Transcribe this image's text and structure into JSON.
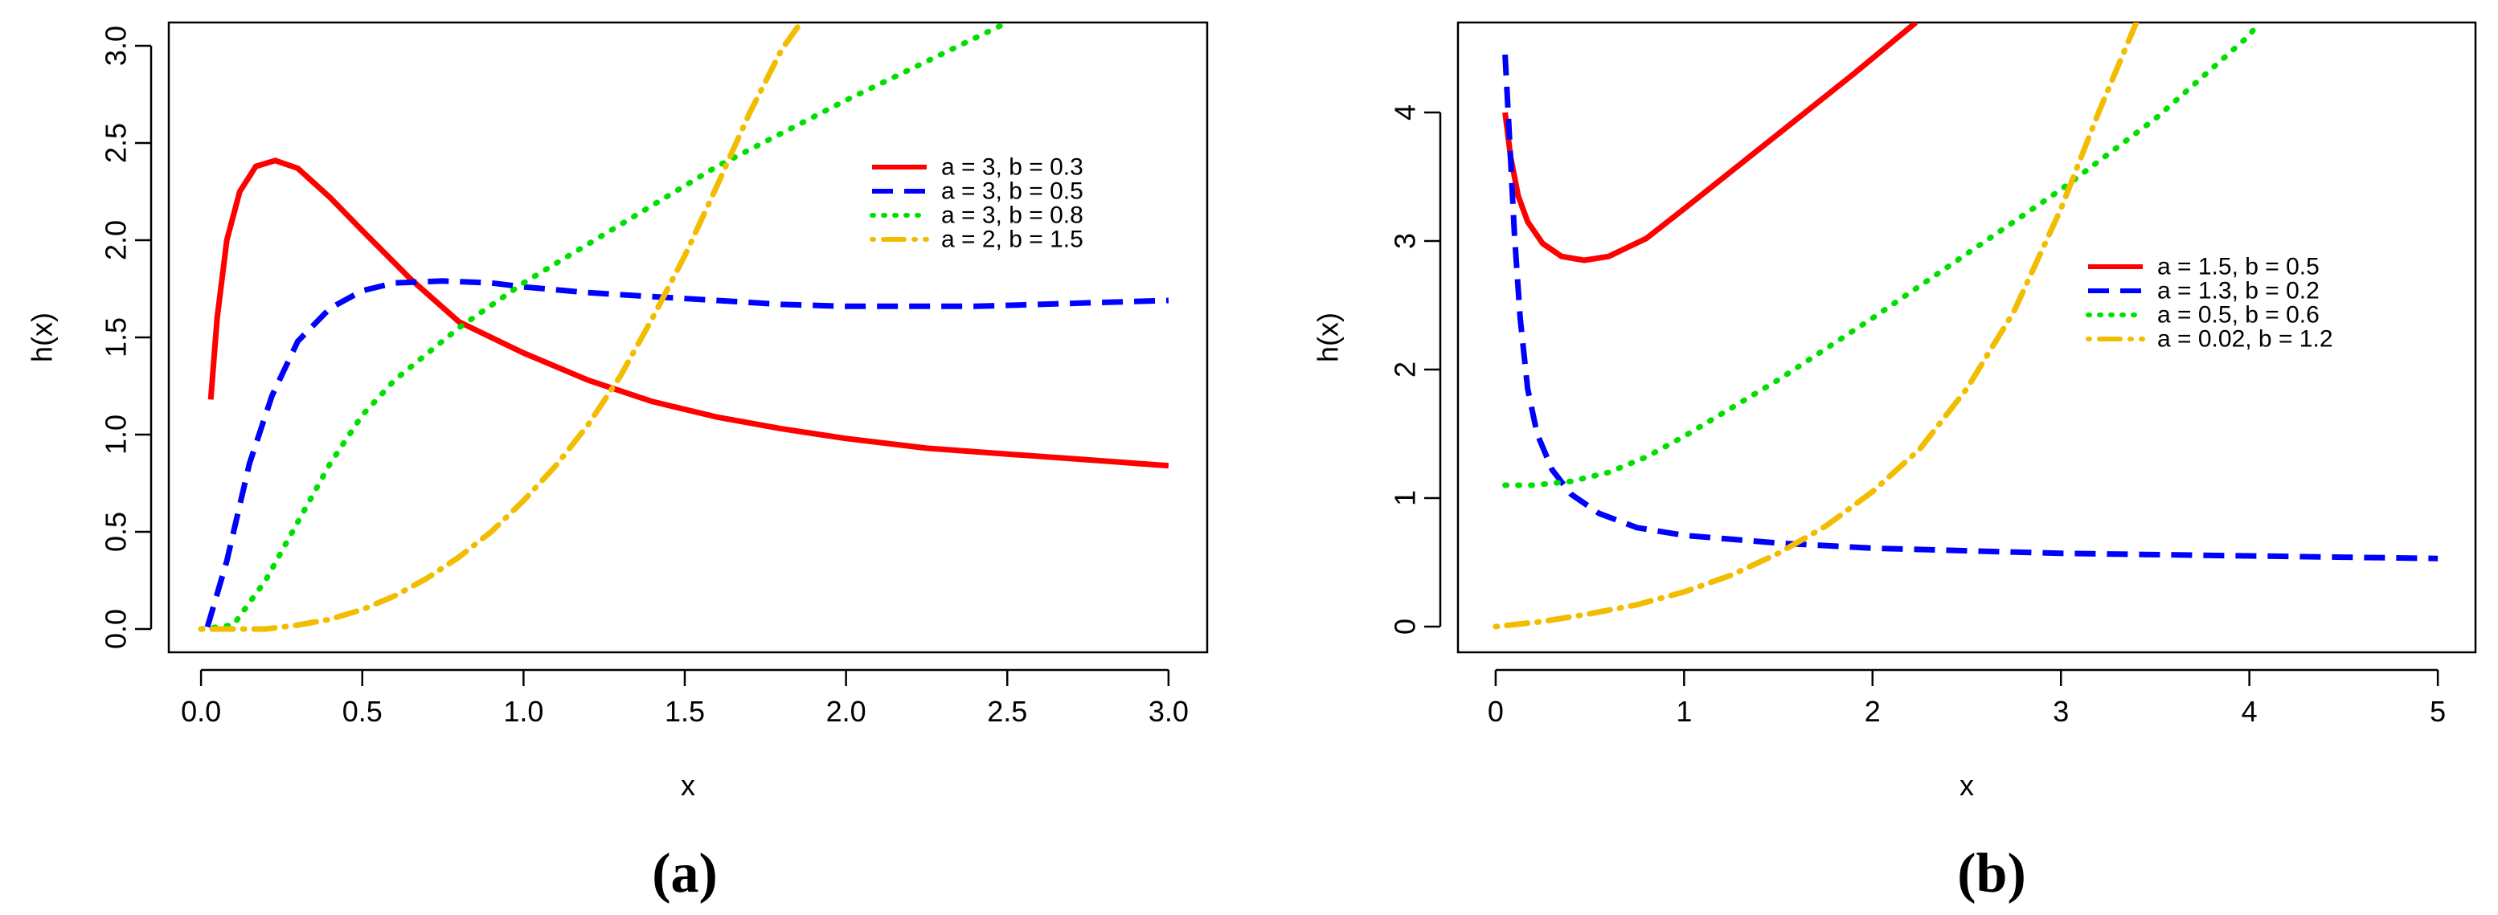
{
  "chart_data": [
    {
      "type": "line",
      "panel_label": "(a)",
      "xlabel": "x",
      "ylabel": "h(x)",
      "xlim": [
        -0.1,
        3.12
      ],
      "ylim": [
        -0.12,
        3.12
      ],
      "xticks": [
        "0.0",
        "0.5",
        "1.0",
        "1.5",
        "2.0",
        "2.5",
        "3.0"
      ],
      "xtick_values": [
        0,
        0.5,
        1,
        1.5,
        2,
        2.5,
        3
      ],
      "yticks": [
        "0.0",
        "0.5",
        "1.0",
        "1.5",
        "2.0",
        "2.5",
        "3.0"
      ],
      "ytick_values": [
        0,
        0.5,
        1,
        1.5,
        2,
        2.5,
        3
      ],
      "legend_position": "right",
      "series": [
        {
          "name": "a = 3, b = 0.3",
          "color": "#ff0000",
          "style": "solid",
          "x": [
            0.03,
            0.05,
            0.08,
            0.12,
            0.17,
            0.23,
            0.3,
            0.4,
            0.5,
            0.65,
            0.8,
            1.0,
            1.2,
            1.4,
            1.6,
            1.8,
            2.0,
            2.25,
            2.5,
            2.75,
            3.0
          ],
          "y": [
            1.18,
            1.6,
            2.0,
            2.25,
            2.38,
            2.41,
            2.37,
            2.22,
            2.05,
            1.8,
            1.58,
            1.42,
            1.28,
            1.17,
            1.09,
            1.03,
            0.98,
            0.93,
            0.9,
            0.87,
            0.84
          ]
        },
        {
          "name": "a = 3, b = 0.5",
          "color": "#0000ff",
          "style": "dashed",
          "x": [
            0.02,
            0.08,
            0.15,
            0.22,
            0.3,
            0.4,
            0.5,
            0.6,
            0.75,
            0.9,
            1.0,
            1.2,
            1.4,
            1.6,
            1.8,
            2.0,
            2.2,
            2.4,
            2.6,
            2.8,
            3.0
          ],
          "y": [
            0.01,
            0.35,
            0.85,
            1.2,
            1.48,
            1.65,
            1.74,
            1.78,
            1.79,
            1.78,
            1.76,
            1.73,
            1.71,
            1.69,
            1.67,
            1.66,
            1.66,
            1.66,
            1.67,
            1.68,
            1.69
          ]
        },
        {
          "name": "a = 3, b = 0.8",
          "color": "#00e000",
          "style": "dotted",
          "x": [
            0.0,
            0.1,
            0.2,
            0.3,
            0.4,
            0.5,
            0.6,
            0.8,
            1.0,
            1.2,
            1.4,
            1.6,
            1.8,
            2.0,
            2.2,
            2.5
          ],
          "y": [
            0.0,
            0.02,
            0.25,
            0.55,
            0.85,
            1.1,
            1.28,
            1.55,
            1.78,
            1.98,
            2.18,
            2.38,
            2.55,
            2.72,
            2.88,
            3.12
          ]
        },
        {
          "name": "a = 2, b = 1.5",
          "color": "#f2bc00",
          "style": "dotdash",
          "x": [
            0.0,
            0.2,
            0.3,
            0.4,
            0.5,
            0.6,
            0.7,
            0.8,
            0.9,
            1.0,
            1.1,
            1.2,
            1.3,
            1.4,
            1.5,
            1.6,
            1.7,
            1.8,
            1.86
          ],
          "y": [
            0.0,
            0.0,
            0.02,
            0.05,
            0.1,
            0.17,
            0.26,
            0.37,
            0.5,
            0.66,
            0.84,
            1.05,
            1.3,
            1.6,
            1.92,
            2.28,
            2.65,
            2.98,
            3.12
          ]
        }
      ]
    },
    {
      "type": "line",
      "panel_label": "(b)",
      "xlabel": "x",
      "ylabel": "h(x)",
      "xlim": [
        -0.2,
        5.2
      ],
      "ylim": [
        -0.2,
        4.7
      ],
      "xticks": [
        "0",
        "1",
        "2",
        "3",
        "4",
        "5"
      ],
      "xtick_values": [
        0,
        1,
        2,
        3,
        4,
        5
      ],
      "yticks": [
        "0",
        "1",
        "2",
        "3",
        "4"
      ],
      "ytick_values": [
        0,
        1,
        2,
        3,
        4
      ],
      "legend_position": "right",
      "series": [
        {
          "name": "a = 1.5, b = 0.5",
          "color": "#ff0000",
          "style": "solid",
          "x": [
            0.05,
            0.08,
            0.12,
            0.17,
            0.25,
            0.35,
            0.47,
            0.6,
            0.8,
            1.0,
            1.3,
            1.6,
            1.9,
            2.23
          ],
          "y": [
            4.0,
            3.65,
            3.35,
            3.15,
            2.98,
            2.88,
            2.85,
            2.88,
            3.02,
            3.25,
            3.6,
            3.95,
            4.3,
            4.7
          ]
        },
        {
          "name": "a = 1.3, b = 0.2",
          "color": "#0000ff",
          "style": "dashed",
          "x": [
            0.05,
            0.07,
            0.1,
            0.13,
            0.17,
            0.22,
            0.3,
            0.4,
            0.55,
            0.75,
            1.0,
            1.5,
            2.0,
            2.5,
            3.0,
            3.5,
            4.0,
            4.5,
            5.0
          ],
          "y": [
            4.45,
            3.9,
            3.05,
            2.4,
            1.85,
            1.5,
            1.22,
            1.03,
            0.88,
            0.77,
            0.71,
            0.65,
            0.61,
            0.59,
            0.57,
            0.56,
            0.55,
            0.54,
            0.53
          ]
        },
        {
          "name": "a = 0.5, b = 0.6",
          "color": "#00e000",
          "style": "dotted",
          "x": [
            0.05,
            0.2,
            0.4,
            0.6,
            0.8,
            1.0,
            1.5,
            2.0,
            2.5,
            3.0,
            3.5,
            4.0,
            4.05
          ],
          "y": [
            1.1,
            1.1,
            1.13,
            1.2,
            1.32,
            1.48,
            1.92,
            2.4,
            2.9,
            3.4,
            3.95,
            4.6,
            4.7
          ]
        },
        {
          "name": "a = 0.02, b = 1.2",
          "color": "#f2bc00",
          "style": "dotdash",
          "x": [
            0.0,
            0.25,
            0.5,
            0.75,
            1.0,
            1.25,
            1.5,
            1.75,
            2.0,
            2.25,
            2.5,
            2.75,
            3.0,
            3.2,
            3.4
          ],
          "y": [
            0.0,
            0.04,
            0.1,
            0.17,
            0.27,
            0.4,
            0.57,
            0.78,
            1.05,
            1.38,
            1.85,
            2.45,
            3.25,
            4.0,
            4.7
          ]
        }
      ]
    }
  ]
}
